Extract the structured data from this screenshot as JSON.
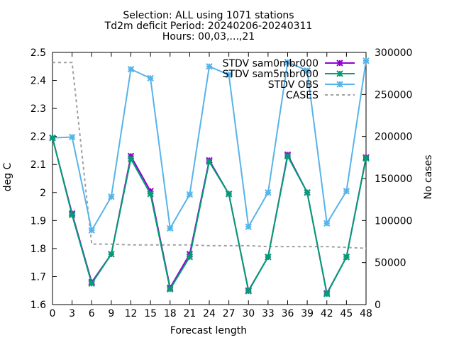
{
  "chart_data": {
    "type": "line",
    "title": [
      "Selection: ALL using  1071 stations",
      "Td2m deficit   Period: 20240206-20240311",
      "Hours: 00,03,...,21"
    ],
    "xlabel": "Forecast length",
    "ylabel": "deg C",
    "y2label": "No cases",
    "x": [
      0,
      3,
      6,
      9,
      12,
      15,
      18,
      21,
      24,
      27,
      30,
      33,
      36,
      39,
      42,
      45,
      48
    ],
    "xlim": [
      0,
      48
    ],
    "ylim": [
      1.6,
      2.5
    ],
    "y2lim": [
      0,
      300000
    ],
    "yticks": [
      "1.6",
      "1.7",
      "1.8",
      "1.9",
      "2",
      "2.1",
      "2.2",
      "2.3",
      "2.4",
      "2.5"
    ],
    "y2ticks": [
      "0",
      "50000",
      "100000",
      "150000",
      "200000",
      "250000",
      "300000"
    ],
    "legend_position": "top-right",
    "series": [
      {
        "name": "STDV sam0mbr000",
        "color": "#9400d3",
        "axis": "y",
        "values": [
          2.195,
          1.925,
          1.68,
          1.78,
          2.13,
          2.005,
          1.66,
          1.78,
          2.115,
          1.995,
          1.65,
          1.77,
          2.135,
          2.0,
          1.64,
          1.77,
          2.125
        ]
      },
      {
        "name": "STDV sam5mbr000",
        "color": "#009e73",
        "axis": "y",
        "values": [
          2.195,
          1.92,
          1.675,
          1.78,
          2.12,
          1.995,
          1.655,
          1.77,
          2.11,
          1.995,
          1.648,
          1.77,
          2.13,
          2.0,
          1.638,
          1.77,
          2.122
        ]
      },
      {
        "name": "STDV OBS",
        "color": "#56b4e9",
        "axis": "y",
        "values": [
          2.195,
          2.198,
          1.865,
          1.985,
          2.44,
          2.408,
          1.872,
          1.993,
          2.45,
          2.42,
          1.878,
          2.0,
          2.465,
          2.435,
          1.89,
          2.005,
          2.47
        ]
      },
      {
        "name": "CASES",
        "color": "#a0a0a0",
        "axis": "y2",
        "values": [
          288000,
          288000,
          72000,
          72000,
          71000,
          71000,
          71000,
          71000,
          70000,
          70000,
          70000,
          69000,
          69000,
          69000,
          69000,
          68000,
          67000
        ]
      }
    ]
  }
}
